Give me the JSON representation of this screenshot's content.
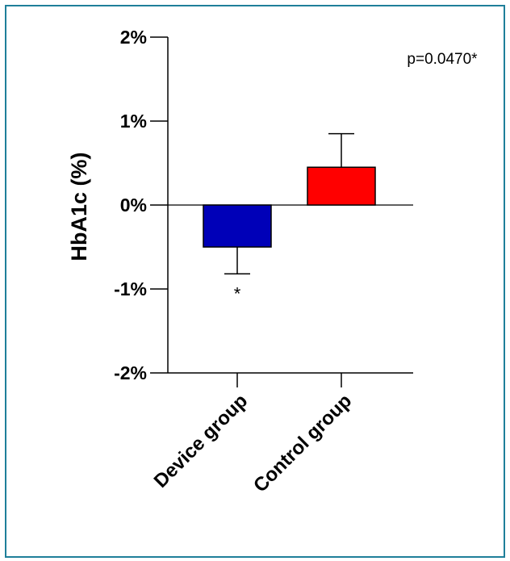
{
  "chart_data": {
    "type": "bar",
    "categories": [
      "Device group",
      "Control group"
    ],
    "values": [
      -0.5,
      0.45
    ],
    "errors": [
      0.32,
      0.4
    ],
    "significance_marks": [
      "*",
      ""
    ],
    "colors": [
      "#0000b8",
      "#ff0000"
    ],
    "title": "",
    "xlabel": "",
    "ylabel": "HbA1c (%)",
    "ylim": [
      -2,
      2
    ],
    "yticks": [
      2,
      1,
      0,
      -1,
      -2
    ],
    "ytick_labels": [
      "2%",
      "1%",
      "0%",
      "-1%",
      "-2%"
    ],
    "grid": false,
    "annotation": "p=0.0470*"
  }
}
